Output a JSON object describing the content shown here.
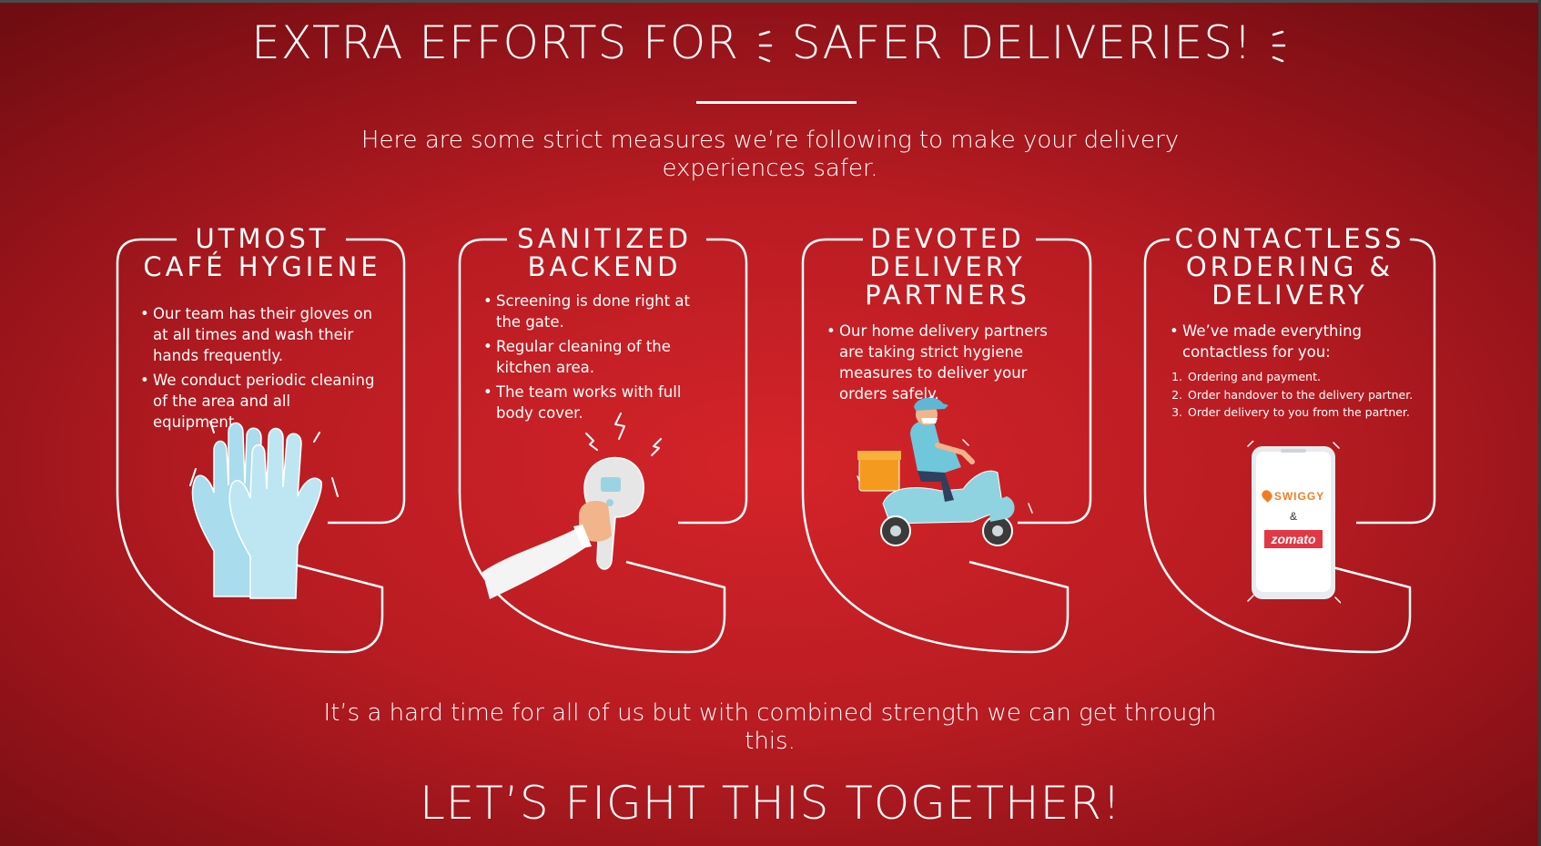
{
  "header": {
    "title_part1": "EXTRA EFFORTS FOR",
    "title_part2": "SAFER DELIVERIES!",
    "subtitle": "Here are some strict measures we’re following to make your delivery experiences safer."
  },
  "cards": [
    {
      "title_line1": "UTMOST",
      "title_line2": "CAFÉ HYGIENE",
      "bullets": [
        "Our team has their gloves on at all times and wash their hands frequently.",
        "We conduct periodic cleaning of the area and all equipment."
      ],
      "icon": "gloves-icon"
    },
    {
      "title_line1": "SANITIZED",
      "title_line2": "BACKEND",
      "bullets": [
        "Screening is done right at the gate.",
        "Regular cleaning of the kitchen area.",
        "The team works with full body cover."
      ],
      "icon": "thermometer-icon"
    },
    {
      "title_line1": "DEVOTED",
      "title_line2": "DELIVERY",
      "title_line3": "PARTNERS",
      "bullets": [
        "Our home delivery partners are taking strict hygiene measures to deliver your orders safely."
      ],
      "icon": "delivery-scooter-icon"
    },
    {
      "title_line1": "CONTACTLESS",
      "title_line2": "ORDERING &",
      "title_line3": "DELIVERY",
      "bullets": [
        "We’ve made everything contactless for you:"
      ],
      "steps": [
        "Ordering and payment.",
        "Order handover to the delivery partner.",
        "Order delivery to you from the partner."
      ],
      "phone": {
        "brand1": "SWIGGY",
        "ampersand": "&",
        "brand2": "zomato"
      },
      "icon": "phone-icon"
    }
  ],
  "footer": {
    "message": "It’s a hard time for all of us but with combined strength we can get through this.",
    "tagline": "LET’S FIGHT THIS TOGETHER!"
  },
  "colors": {
    "background": "#c41f25",
    "accent_orange": "#f47c20",
    "zomato_red": "#e23744",
    "glove_blue": "#a9dcec"
  }
}
